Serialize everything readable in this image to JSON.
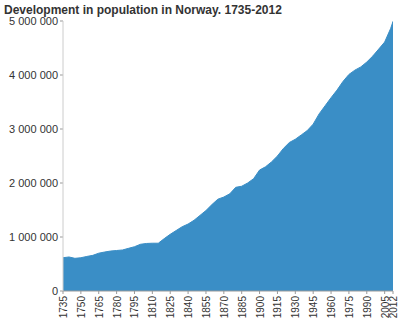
{
  "chart_data": {
    "type": "area",
    "title": "Development in population in Norway. 1735-2012",
    "x": [
      1735,
      1740,
      1745,
      1750,
      1755,
      1760,
      1765,
      1770,
      1775,
      1780,
      1785,
      1790,
      1795,
      1800,
      1805,
      1810,
      1815,
      1820,
      1825,
      1830,
      1835,
      1840,
      1845,
      1850,
      1855,
      1860,
      1865,
      1870,
      1875,
      1880,
      1885,
      1890,
      1895,
      1900,
      1905,
      1910,
      1915,
      1920,
      1925,
      1930,
      1935,
      1940,
      1945,
      1950,
      1955,
      1960,
      1965,
      1970,
      1975,
      1980,
      1985,
      1990,
      1995,
      2000,
      2005,
      2010,
      2012
    ],
    "values": [
      616000,
      630000,
      605000,
      616000,
      640000,
      660000,
      700000,
      722000,
      740000,
      750000,
      760000,
      790000,
      820000,
      865000,
      880000,
      885000,
      885000,
      970000,
      1050000,
      1120000,
      1190000,
      1240000,
      1310000,
      1400000,
      1490000,
      1600000,
      1700000,
      1740000,
      1800000,
      1920000,
      1940000,
      2000000,
      2080000,
      2240000,
      2300000,
      2390000,
      2500000,
      2640000,
      2750000,
      2810000,
      2890000,
      2970000,
      3090000,
      3280000,
      3430000,
      3580000,
      3720000,
      3880000,
      4010000,
      4090000,
      4150000,
      4240000,
      4350000,
      4480000,
      4610000,
      4860000,
      4990000
    ],
    "color": "#3a8ec6",
    "xlim": [
      1735,
      2012
    ],
    "xticks": [
      1735,
      1750,
      1765,
      1780,
      1795,
      1810,
      1825,
      1840,
      1855,
      1870,
      1885,
      1900,
      1915,
      1930,
      1945,
      1960,
      1975,
      1990,
      2005,
      2012
    ],
    "ylim": [
      0,
      5000000
    ],
    "yticks": [
      0,
      {
        "value": 1000000,
        "label": "1 000 000"
      },
      {
        "value": 2000000,
        "label": "2 000 000"
      },
      {
        "value": 3000000,
        "label": "3 000 000"
      },
      {
        "value": 4000000,
        "label": "4 000 000"
      },
      {
        "value": 5000000,
        "label": "5 000 000"
      }
    ],
    "grid": false
  }
}
